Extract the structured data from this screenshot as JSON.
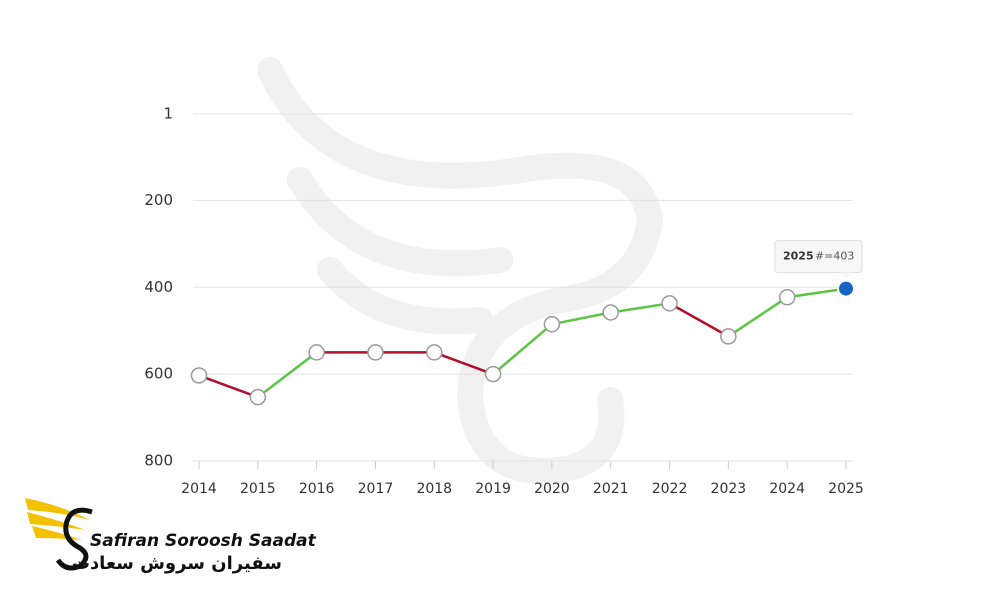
{
  "chart_data": {
    "type": "line",
    "categories": [
      "2014",
      "2015",
      "2016",
      "2017",
      "2018",
      "2019",
      "2020",
      "2021",
      "2022",
      "2023",
      "2024",
      "2025"
    ],
    "values": [
      603,
      653,
      550,
      550,
      550,
      600,
      485,
      458,
      437,
      513,
      423,
      403
    ],
    "ylim": [
      1,
      800
    ],
    "y_reversed": true,
    "yticks": [
      1,
      200,
      400,
      600,
      800
    ],
    "grid": true,
    "improve_color": "#5cc445",
    "worsen_color": "#b0102a",
    "highlight_color": "#1565c0",
    "tooltip_label": "#=403"
  },
  "logo": {
    "name": "Safiran Soroosh Saadat",
    "name_fa": "سفیران سروش سعادت"
  }
}
